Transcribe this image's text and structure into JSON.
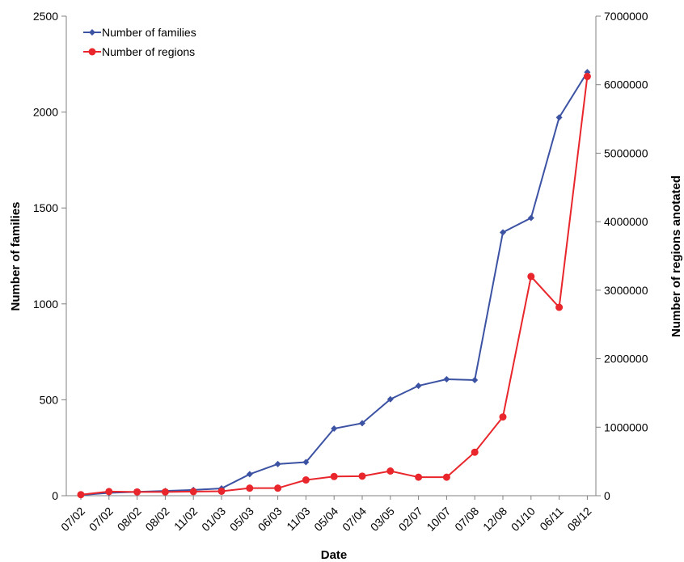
{
  "chart_data": {
    "type": "line",
    "xlabel": "Date",
    "ylabel": "Number of families",
    "y2label": "Number of regions anotated",
    "categories": [
      "07/02",
      "07/02",
      "08/02",
      "08/02",
      "11/02",
      "01/03",
      "05/03",
      "06/03",
      "11/03",
      "05/04",
      "07/04",
      "03/05",
      "02/07",
      "10/07",
      "07/08",
      "12/08",
      "01/10",
      "06/11",
      "08/12"
    ],
    "ylim": [
      0,
      2500
    ],
    "yticks": [
      0,
      500,
      1000,
      1500,
      2000,
      2500
    ],
    "y2lim": [
      0,
      7000000
    ],
    "y2ticks": [
      0,
      1000000,
      2000000,
      3000000,
      4000000,
      5000000,
      6000000,
      7000000
    ],
    "legend_position": "top-left",
    "grid": false,
    "series": [
      {
        "name": "Number of families",
        "axis": "left",
        "color": "#3c52a3",
        "marker": "diamond",
        "values": [
          3,
          15,
          20,
          25,
          30,
          38,
          112,
          165,
          175,
          350,
          378,
          503,
          573,
          607,
          603,
          1373,
          1448,
          1972,
          2208
        ]
      },
      {
        "name": "Number of regions",
        "axis": "right",
        "color": "#e8262b",
        "marker": "circle",
        "values": [
          15000,
          60000,
          55000,
          55000,
          60000,
          65000,
          110000,
          110000,
          230000,
          280000,
          285000,
          360000,
          270000,
          270000,
          635000,
          1150000,
          3200000,
          2750000,
          6120000
        ]
      }
    ]
  }
}
